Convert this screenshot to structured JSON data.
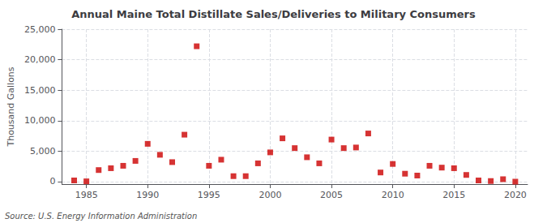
{
  "chart_data": {
    "type": "scatter",
    "title": "Annual Maine Total Distillate Sales/Deliveries to Military Consumers",
    "ylabel": "Thousand Gallons",
    "annotation": "Source: U.S. Energy Information Administration",
    "color": "#cc0000",
    "marker": "square",
    "grid": true,
    "xlim": [
      1983,
      2021
    ],
    "ylim": [
      -400,
      25000
    ],
    "xticks": [
      1985,
      1990,
      1995,
      2000,
      2005,
      2010,
      2015,
      2020
    ],
    "yticks": [
      0,
      {
        "value": 5000,
        "label": "5,000"
      },
      {
        "value": 10000,
        "label": "10,000"
      },
      {
        "value": 15000,
        "label": "15,000"
      },
      {
        "value": 20000,
        "label": "20,000"
      },
      {
        "value": 25000,
        "label": "25,000"
      }
    ],
    "x": [
      1984,
      1985,
      1986,
      1987,
      1988,
      1989,
      1990,
      1991,
      1992,
      1993,
      1994,
      1995,
      1996,
      1997,
      1998,
      1999,
      2000,
      2001,
      2002,
      2003,
      2004,
      2005,
      2006,
      2007,
      2008,
      2009,
      2010,
      2011,
      2012,
      2013,
      2014,
      2015,
      2016,
      2017,
      2018,
      2019,
      2020
    ],
    "values": [
      200,
      50,
      1900,
      2200,
      2600,
      3400,
      6200,
      4400,
      3200,
      7700,
      22200,
      2600,
      3600,
      900,
      900,
      3000,
      4800,
      7100,
      5500,
      4000,
      3000,
      6900,
      5500,
      5600,
      7900,
      1500,
      2900,
      1300,
      1000,
      2600,
      2300,
      2200,
      1100,
      200,
      100,
      400,
      0
    ]
  }
}
